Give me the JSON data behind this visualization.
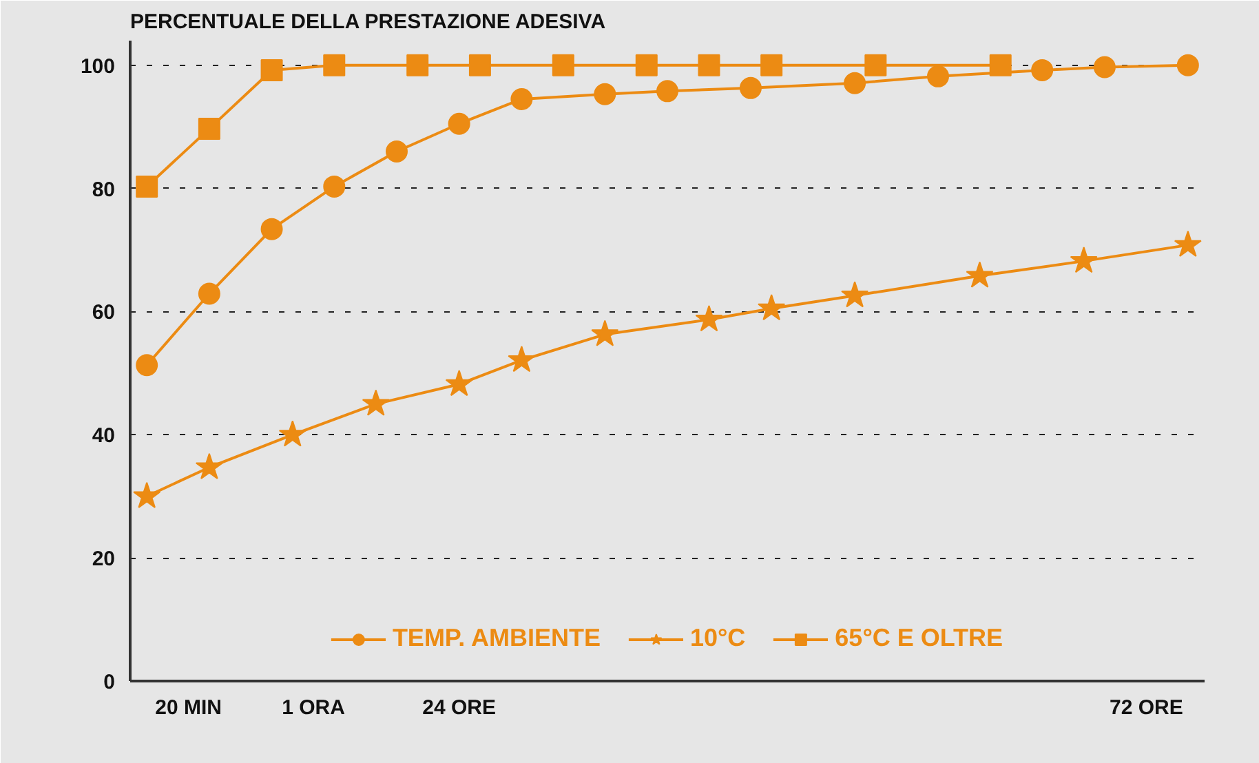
{
  "chart_data": {
    "type": "line",
    "title": "PERCENTUALE DELLA PRESTAZIONE ADESIVA",
    "categories": [
      null,
      null,
      "20 MIN",
      null,
      null,
      null,
      null,
      null,
      "1 ORA",
      null,
      null,
      null,
      null,
      null,
      null,
      "24 ORE",
      null,
      null,
      null,
      null,
      null,
      null,
      null,
      null,
      null,
      null,
      null,
      null,
      null,
      null,
      null,
      null,
      null,
      null,
      null,
      null,
      null,
      null,
      null,
      null,
      null,
      null,
      null,
      null,
      null,
      null,
      null,
      null,
      "72 ORE",
      null,
      null
    ],
    "ylim": [
      0,
      104
    ],
    "yticks": [
      0,
      20,
      40,
      60,
      80,
      100
    ],
    "grid": "y",
    "legend": "bottom",
    "line_style": "solid",
    "series": [
      {
        "name": "TEMP. AMBIENTE",
        "color": "#ec8b13",
        "marker": "circle",
        "values": [
          51.3,
          null,
          null,
          62.9,
          null,
          null,
          73.4,
          null,
          null,
          80.3,
          null,
          null,
          86,
          null,
          null,
          90.5,
          null,
          null,
          94.5,
          null,
          null,
          null,
          95.3,
          null,
          null,
          95.8,
          null,
          null,
          null,
          96.3,
          null,
          null,
          null,
          null,
          97.1,
          null,
          null,
          null,
          98.2,
          null,
          null,
          null,
          null,
          99.2,
          null,
          null,
          99.7,
          null,
          null,
          null,
          100
        ]
      },
      {
        "name": "10°C",
        "color": "#ec8b13",
        "marker": "star",
        "values": [
          30,
          null,
          null,
          34.7,
          null,
          null,
          null,
          40,
          null,
          null,
          null,
          45,
          null,
          null,
          null,
          48.2,
          null,
          null,
          52.1,
          null,
          null,
          null,
          56.3,
          null,
          null,
          null,
          null,
          58.7,
          null,
          null,
          60.5,
          null,
          null,
          null,
          62.6,
          null,
          null,
          null,
          null,
          null,
          65.8,
          null,
          null,
          null,
          null,
          68.2,
          null,
          null,
          null,
          null,
          70.8
        ]
      },
      {
        "name": "65°C E OLTRE",
        "color": "#ec8b13",
        "marker": "square",
        "values": [
          80.3,
          null,
          null,
          89.7,
          null,
          null,
          99.2,
          null,
          null,
          100,
          null,
          null,
          null,
          100,
          null,
          null,
          100,
          null,
          null,
          null,
          100,
          null,
          null,
          null,
          100,
          null,
          null,
          100,
          null,
          null,
          100,
          null,
          null,
          null,
          null,
          100,
          null,
          null,
          null,
          null,
          null,
          100,
          null,
          null,
          null,
          null,
          null,
          null,
          null,
          null,
          null
        ]
      }
    ]
  }
}
